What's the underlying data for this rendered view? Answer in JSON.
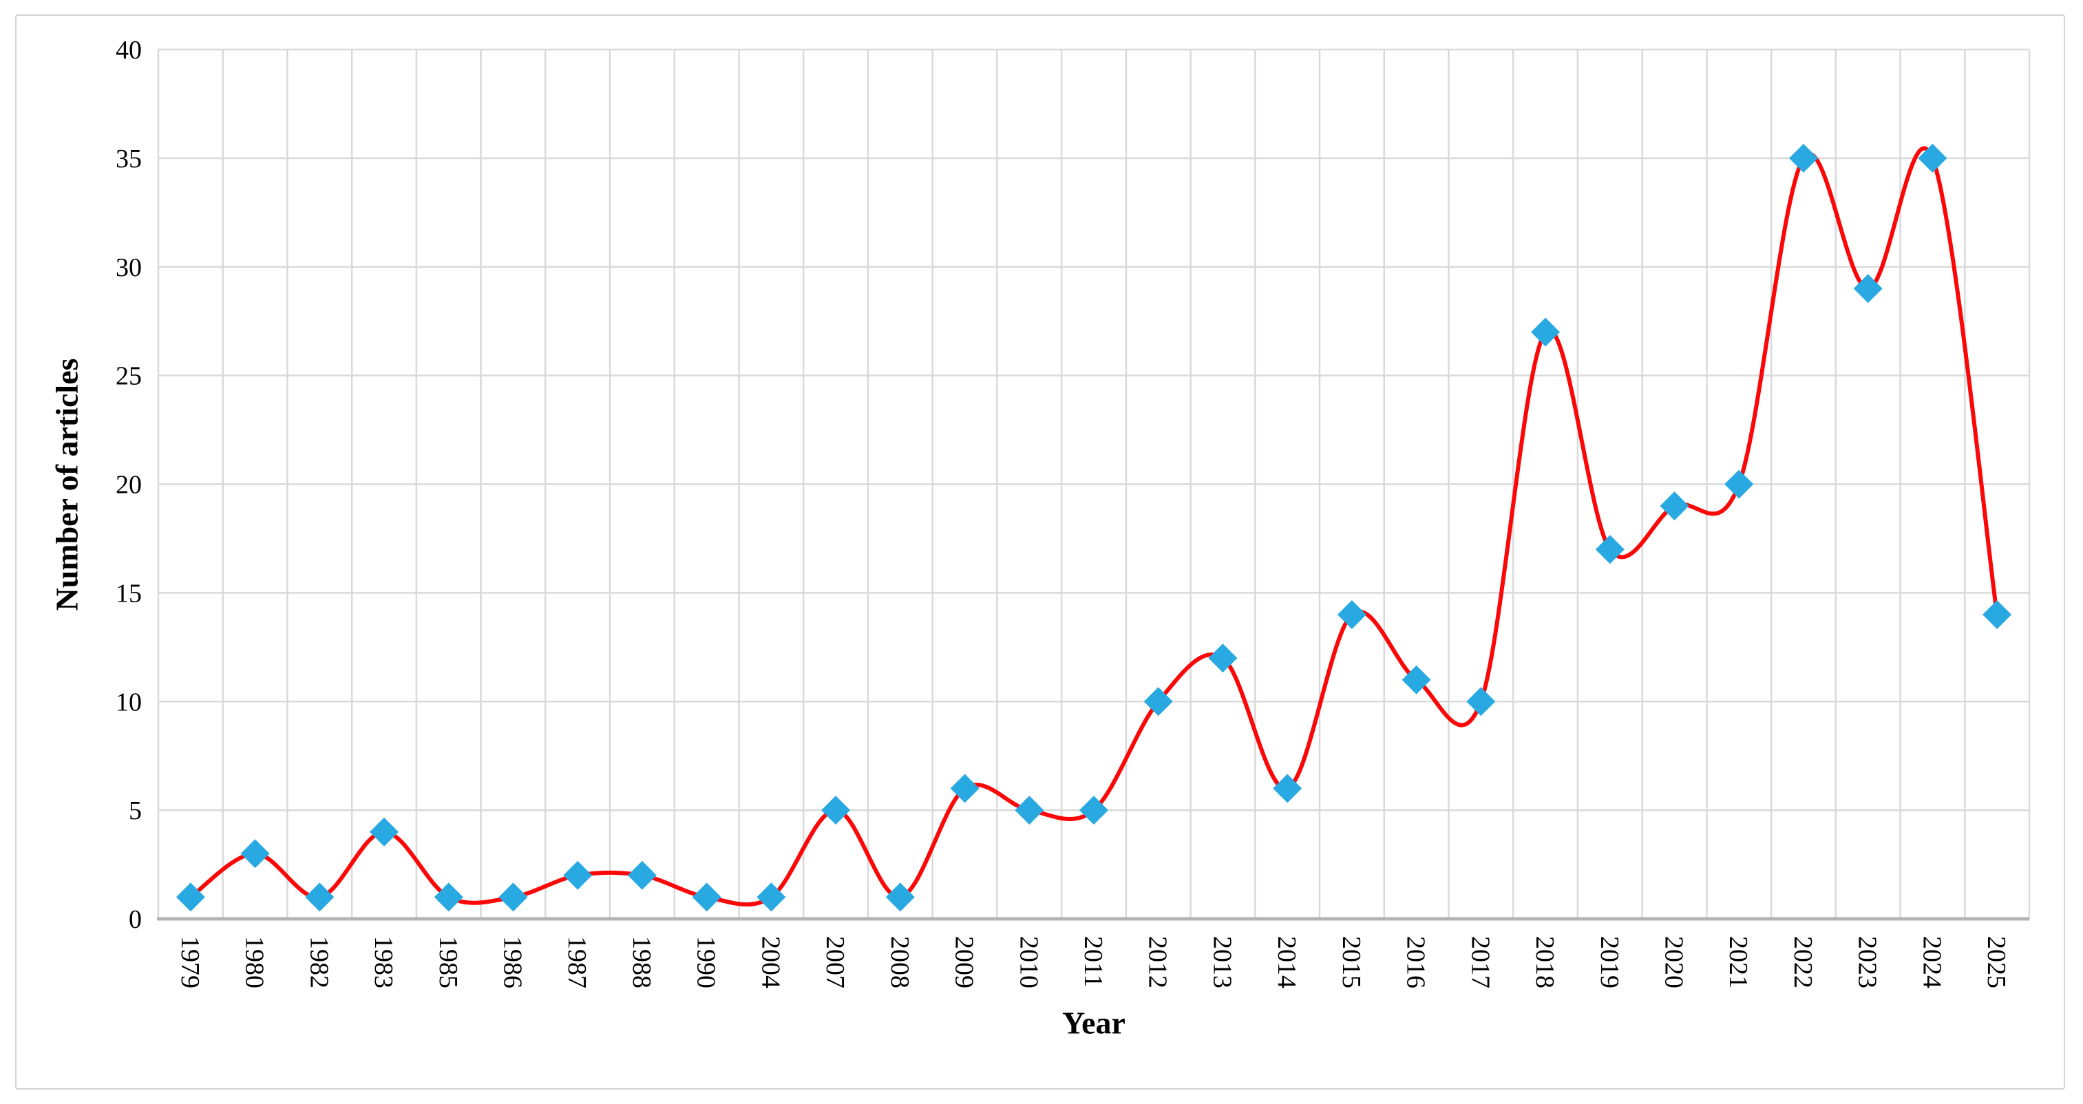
{
  "figure": {
    "background": "#ffffff",
    "border_color": "#d4d4d4"
  },
  "chart_data": {
    "type": "line",
    "title": "",
    "xlabel": "Year",
    "ylabel": "Number of articles",
    "categories": [
      "1979",
      "1980",
      "1982",
      "1983",
      "1985",
      "1986",
      "1987",
      "1988",
      "1990",
      "2004",
      "2007",
      "2008",
      "2009",
      "2010",
      "2011",
      "2012",
      "2013",
      "2014",
      "2015",
      "2016",
      "2017",
      "2018",
      "2019",
      "2020",
      "2021",
      "2022",
      "2023",
      "2024",
      "2025"
    ],
    "values": [
      1,
      3,
      1,
      4,
      1,
      1,
      2,
      2,
      1,
      1,
      5,
      1,
      6,
      5,
      5,
      10,
      12,
      6,
      14,
      11,
      10,
      27,
      17,
      19,
      20,
      35,
      29,
      35,
      14
    ],
    "ylim": [
      0,
      40
    ],
    "yticks": [
      0,
      5,
      10,
      15,
      20,
      25,
      30,
      35,
      40
    ],
    "grid": "both",
    "legend": "none",
    "smooth": true,
    "marker_shape": "diamond",
    "line_color": "#fb0707",
    "marker_color": "#29a9e1",
    "gridline_color": "#d9d9d9",
    "axis_line_color": "#b3b3b3",
    "text_color": "#000000"
  }
}
